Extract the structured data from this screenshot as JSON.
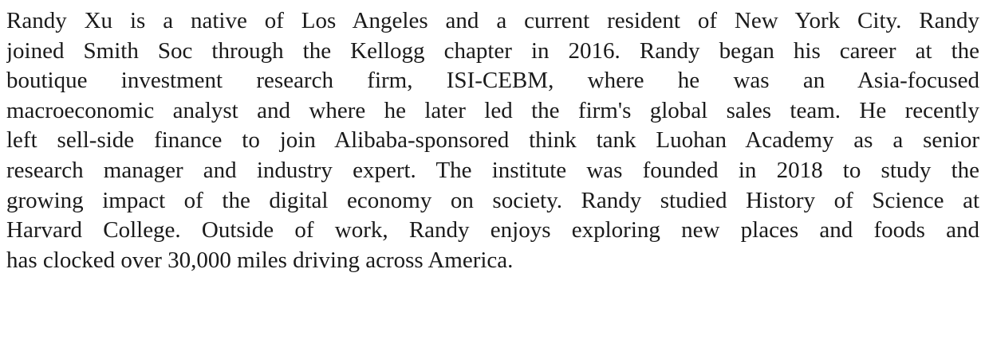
{
  "paragraph": {
    "lines": [
      "Randy Xu is a native of Los Angeles and a current resident of New York City. Randy",
      "joined Smith Soc through the Kellogg chapter in 2016. Randy began his career at the",
      "boutique investment research firm, ISI-CEBM, where he was an Asia-focused",
      "macroeconomic analyst and where he later led the firm's global sales team. He recently",
      "left sell-side finance to join Alibaba-sponsored think tank Luohan Academy as a senior",
      "research manager and industry expert. The institute was founded in 2018 to study the",
      "growing impact of the digital economy on society. Randy studied History of Science at",
      "Harvard College. Outside of work, Randy enjoys exploring new places and foods and",
      "has clocked over 30,000 miles driving across America."
    ]
  }
}
